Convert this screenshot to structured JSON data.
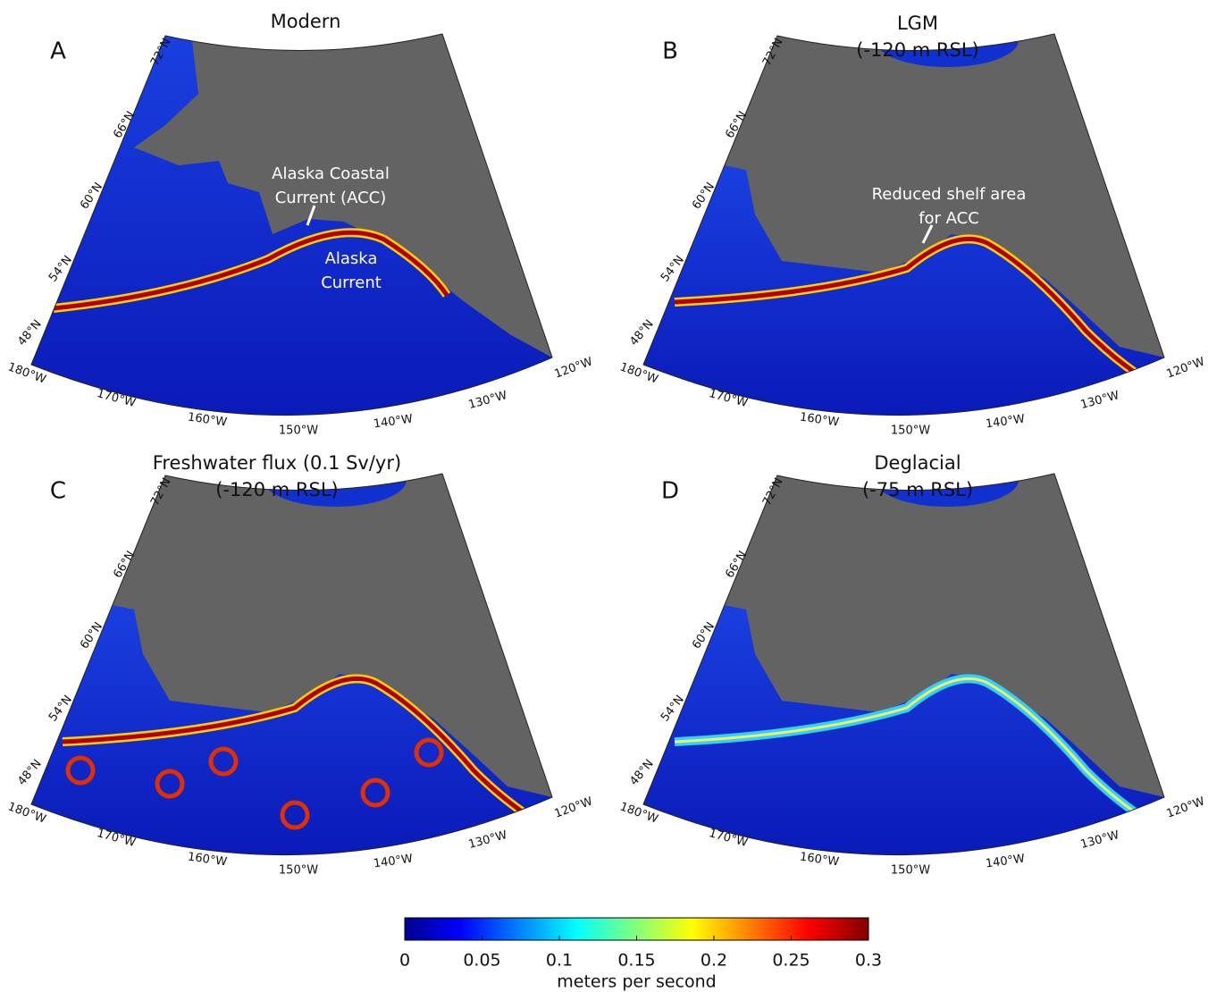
{
  "panels": [
    {
      "letter": "A",
      "title": [
        "Modern"
      ],
      "annotations": [
        [
          "Alaska Coastal",
          "Current (ACC)"
        ],
        [
          "Alaska",
          "Current"
        ]
      ]
    },
    {
      "letter": "B",
      "title": [
        "LGM",
        "(-120 m RSL)"
      ],
      "annotations": [
        [
          "Reduced shelf area",
          "for ACC"
        ]
      ]
    },
    {
      "letter": "C",
      "title": [
        "Freshwater flux (0.1 Sv/yr)",
        "(-120 m RSL)"
      ],
      "annotations": []
    },
    {
      "letter": "D",
      "title": [
        "Deglacial",
        "(-75 m RSL)"
      ],
      "annotations": []
    }
  ],
  "lat_labels": [
    "72°N",
    "66°N",
    "60°N",
    "54°N",
    "48°N"
  ],
  "lon_labels": [
    "180°W",
    "170°W",
    "160°W",
    "150°W",
    "140°W",
    "130°W",
    "120°W"
  ],
  "colorbar": {
    "lim": [
      0,
      0.3
    ],
    "ticks": [
      0,
      0.05,
      0.1,
      0.15,
      0.2,
      0.25,
      0.3
    ],
    "label": "meters per second"
  }
}
